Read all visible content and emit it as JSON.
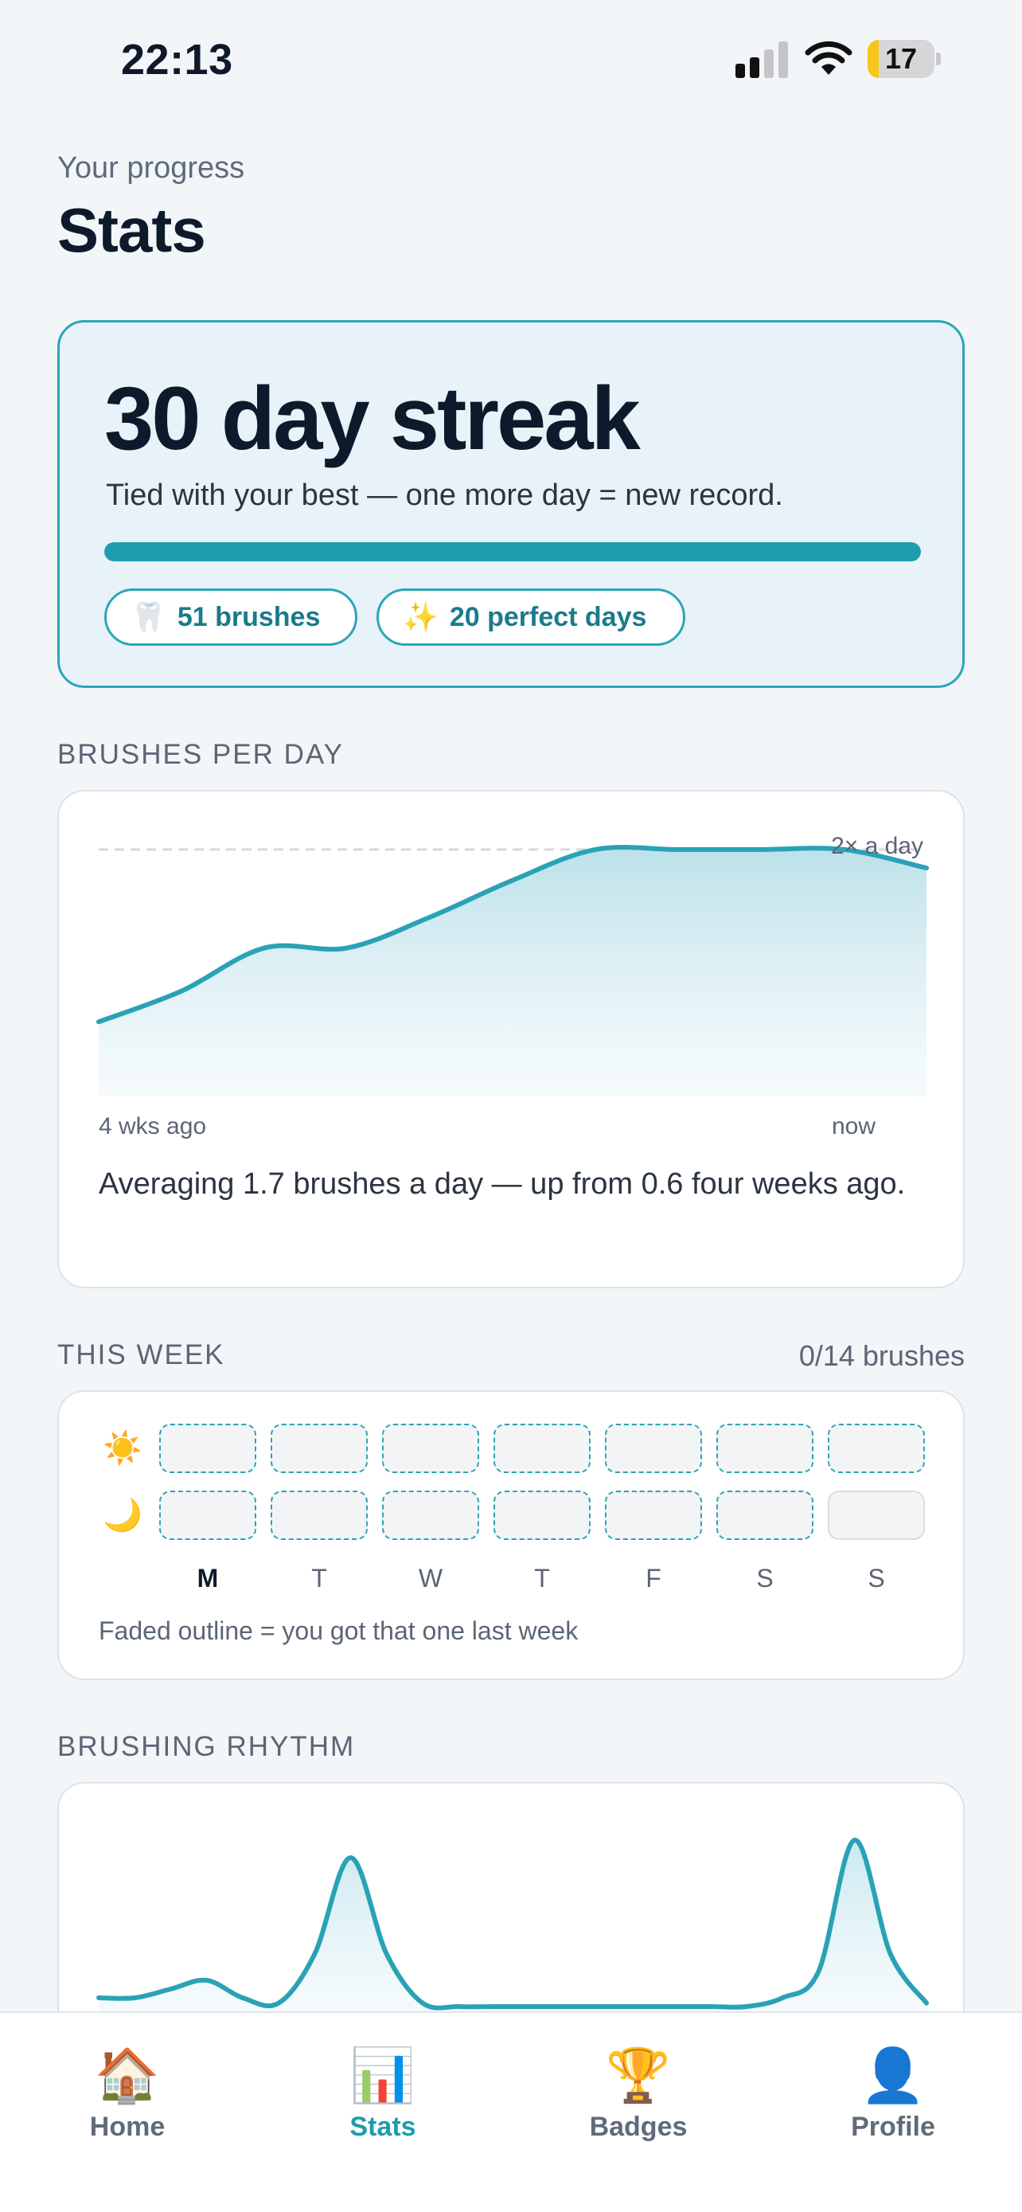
{
  "status_bar": {
    "time": "22:13",
    "battery_level": "17",
    "battery_fraction": 0.17,
    "icons": [
      "cellular-signal-icon",
      "wifi-icon",
      "battery-icon"
    ]
  },
  "header": {
    "subtitle": "Your progress",
    "title": "Stats"
  },
  "streak": {
    "title": "30 day streak",
    "subtitle": "Tied with your best — one more day = new record.",
    "progress": 1.0,
    "badges": [
      {
        "emoji": "🦷",
        "label": "51 brushes"
      },
      {
        "emoji": "✨",
        "label": "20 perfect days"
      }
    ],
    "accent_color": "#1f9bb0"
  },
  "brushes_per_day": {
    "section_label": "BRUSHES PER DAY",
    "reference_label": "2× a day",
    "x_start_label": "4 wks ago",
    "x_end_label": "now",
    "summary": "Averaging 1.7 brushes a day — up from 0.6 four weeks ago."
  },
  "this_week": {
    "section_label": "THIS WEEK",
    "count": "0/14 brushes",
    "rows": [
      {
        "icon": "sun-icon",
        "glyph": "☀️"
      },
      {
        "icon": "moon-icon",
        "glyph": "🌙"
      }
    ],
    "days": [
      "M",
      "T",
      "W",
      "T",
      "F",
      "S",
      "S"
    ],
    "today_index": 0,
    "morning_last_week": [
      true,
      true,
      true,
      true,
      true,
      true,
      true
    ],
    "evening_last_week": [
      true,
      true,
      true,
      true,
      true,
      true,
      false
    ],
    "note": "Faded outline = you got that one last week"
  },
  "rhythm": {
    "section_label": "BRUSHING RHYTHM"
  },
  "tabs": [
    {
      "id": "home",
      "label": "Home",
      "icon": "house-icon",
      "glyph": "🏠"
    },
    {
      "id": "stats",
      "label": "Stats",
      "icon": "bar-chart-icon",
      "glyph": "📊"
    },
    {
      "id": "badges",
      "label": "Badges",
      "icon": "trophy-icon",
      "glyph": "🏆"
    },
    {
      "id": "profile",
      "label": "Profile",
      "icon": "person-icon",
      "glyph": "👤"
    }
  ],
  "active_tab": "stats",
  "chart_data": [
    {
      "type": "area",
      "title": "BRUSHES PER DAY",
      "x_labels": [
        "4 wks ago",
        "now"
      ],
      "x": [
        0,
        3,
        6,
        9,
        12,
        15,
        18,
        21,
        24,
        27,
        30
      ],
      "values": [
        0.6,
        0.85,
        1.2,
        1.2,
        1.45,
        1.75,
        2.0,
        2.0,
        2.0,
        2.0,
        1.85
      ],
      "reference_line": {
        "value": 2,
        "label": "2× a day"
      },
      "ylim": [
        0,
        2.2
      ],
      "color": "#2aa2b6"
    },
    {
      "type": "line",
      "title": "BRUSHING RHYTHM",
      "x": [
        0,
        1,
        2,
        3,
        4,
        5,
        6,
        7,
        8,
        9,
        10,
        11,
        12,
        13,
        14,
        15,
        16,
        17,
        18,
        19,
        20,
        21,
        22,
        23
      ],
      "values": [
        0.05,
        0.05,
        0.1,
        0.15,
        0.05,
        0.02,
        0.3,
        0.85,
        0.3,
        0.02,
        0,
        0,
        0,
        0,
        0,
        0,
        0,
        0,
        0,
        0.05,
        0.2,
        0.95,
        0.3,
        0.02
      ],
      "ylim": [
        0,
        1
      ],
      "color": "#2aa2b6"
    }
  ]
}
